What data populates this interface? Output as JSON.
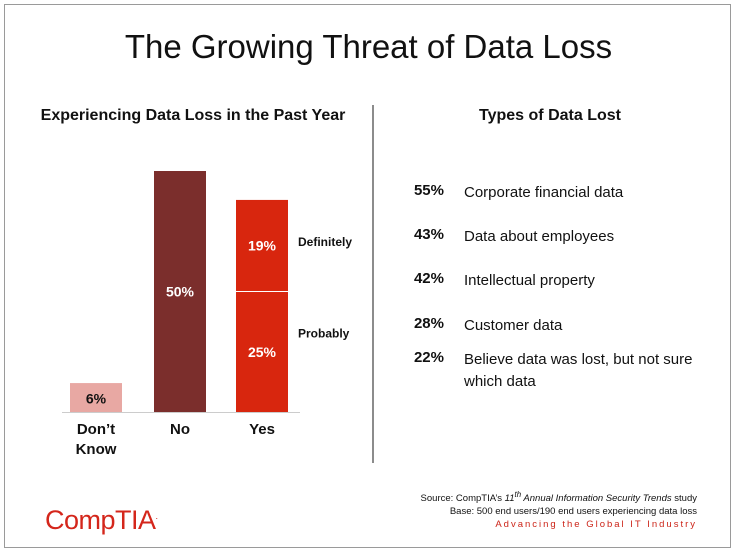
{
  "title": "The Growing Threat of Data Loss",
  "left_heading": "Experiencing Data Loss in the Past Year",
  "right_heading": "Types of Data Lost",
  "colors": {
    "dont_know": "#e8a8a3",
    "no": "#7b2e2c",
    "yes": "#d8260e"
  },
  "chart_data": {
    "type": "bar",
    "title": "Experiencing Data Loss in the Past Year",
    "categories": [
      "Don’t Know",
      "No",
      "Yes"
    ],
    "bars": [
      {
        "category": "Don’t Know",
        "segments": [
          {
            "name": "",
            "value": 6,
            "label": "6%"
          }
        ]
      },
      {
        "category": "No",
        "segments": [
          {
            "name": "",
            "value": 50,
            "label": "50%"
          }
        ]
      },
      {
        "category": "Yes",
        "segments": [
          {
            "name": "Probably",
            "value": 25,
            "label": "25%"
          },
          {
            "name": "Definitely",
            "value": 19,
            "label": "19%"
          }
        ]
      }
    ],
    "ylim": [
      0,
      50
    ],
    "xlabel": "",
    "ylabel": ""
  },
  "types": [
    {
      "pct": "55%",
      "label": "Corporate financial data"
    },
    {
      "pct": "43%",
      "label": "Data about employees"
    },
    {
      "pct": "42%",
      "label": "Intellectual property"
    },
    {
      "pct": "28%",
      "label": "Customer data"
    },
    {
      "pct": "22%",
      "label": "Believe data was lost, but not sure which data"
    }
  ],
  "source": {
    "prefix": "Source: CompTIA’s ",
    "ordinal": "11",
    "ordinal_suffix": "th",
    "study": " Annual Information Security Trends",
    "suffix": " study",
    "base": "Base: 500 end users/190 end users experiencing data loss",
    "tagline": "Advancing the Global IT Industry"
  },
  "logo": {
    "text": "CompTIA",
    "mark": "."
  }
}
